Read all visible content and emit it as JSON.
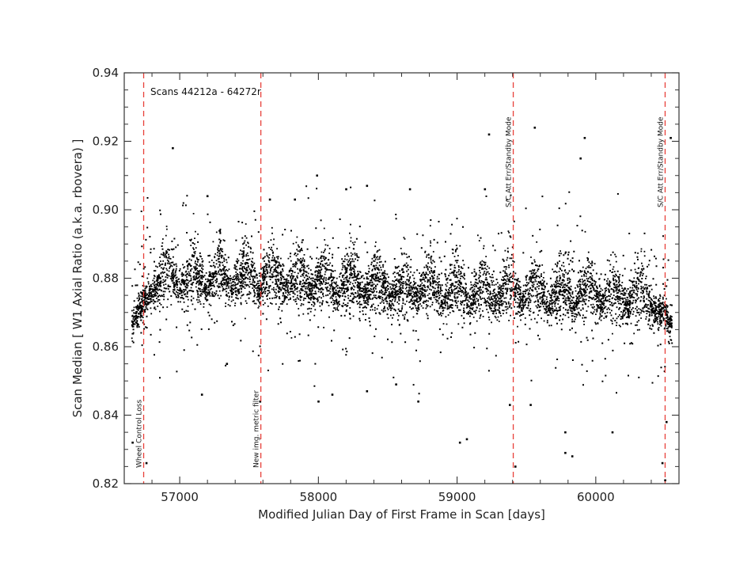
{
  "chart_data": {
    "type": "scatter",
    "title": "",
    "xlabel": "Modified Julian Day of First Frame in Scan [days]",
    "ylabel": "Scan Median [ W1 Axial Ratio (a.k.a. rbovera) ]",
    "xlim": [
      56600,
      60600
    ],
    "ylim": [
      0.82,
      0.94
    ],
    "x_ticks": [
      57000,
      58000,
      59000,
      60000
    ],
    "y_ticks": [
      0.82,
      0.84,
      0.86,
      0.88,
      0.9,
      0.92,
      0.94
    ],
    "x_tick_labels": [
      "57000",
      "58000",
      "59000",
      "60000"
    ],
    "y_tick_labels": [
      "0.82",
      "0.84",
      "0.86",
      "0.88",
      "0.90",
      "0.92",
      "0.94"
    ],
    "grid": false,
    "legend": "none",
    "point_color": "#000000",
    "vline_color": "#e8403a",
    "annotation": "Scans 44212a - 64272r",
    "vlines": [
      {
        "x": 56740,
        "label": "Wheel Control Loss"
      },
      {
        "x": 57585,
        "label": "New img. metric filter"
      },
      {
        "x": 59405,
        "label": "S/C Att Err/Standby Mode"
      },
      {
        "x": 60500,
        "label": "S/C Att Err/Standby Mode"
      }
    ],
    "series": [
      {
        "values_description_note": "",
        "trend_x": [
          56650,
          56700,
          56740,
          56800,
          56950,
          57100,
          57300,
          57500,
          57700,
          57900,
          58100,
          58300,
          58500,
          58700,
          58900,
          59100,
          59300,
          59500,
          59700,
          59900,
          60100,
          60300,
          60500,
          60540
        ],
        "trend_y": [
          0.87,
          0.874,
          0.877,
          0.879,
          0.88,
          0.88,
          0.88,
          0.88,
          0.88,
          0.879,
          0.878,
          0.878,
          0.877,
          0.877,
          0.876,
          0.876,
          0.876,
          0.876,
          0.875,
          0.875,
          0.875,
          0.874,
          0.873,
          0.87
        ],
        "oscillation_peaks_x": [
          56900,
          57090,
          57280,
          57470,
          57660,
          57850,
          58040,
          58230,
          58420,
          58610,
          58800,
          58990,
          59180,
          59370,
          59560,
          59750,
          59940,
          60130,
          60320
        ],
        "oscillation_amplitude": 0.009,
        "scatter_half_width": 0.0065,
        "outliers": [
          {
            "x": 56950,
            "y": 0.918
          },
          {
            "x": 57200,
            "y": 0.904
          },
          {
            "x": 57650,
            "y": 0.903
          },
          {
            "x": 57830,
            "y": 0.903
          },
          {
            "x": 57990,
            "y": 0.91
          },
          {
            "x": 58200,
            "y": 0.906
          },
          {
            "x": 58350,
            "y": 0.907
          },
          {
            "x": 58660,
            "y": 0.906
          },
          {
            "x": 59200,
            "y": 0.906
          },
          {
            "x": 59230,
            "y": 0.922
          },
          {
            "x": 59560,
            "y": 0.924
          },
          {
            "x": 59890,
            "y": 0.915
          },
          {
            "x": 59920,
            "y": 0.921
          },
          {
            "x": 60540,
            "y": 0.921
          },
          {
            "x": 56660,
            "y": 0.832
          },
          {
            "x": 56760,
            "y": 0.826
          },
          {
            "x": 57160,
            "y": 0.846
          },
          {
            "x": 57340,
            "y": 0.855
          },
          {
            "x": 57580,
            "y": 0.844
          },
          {
            "x": 58000,
            "y": 0.844
          },
          {
            "x": 58100,
            "y": 0.846
          },
          {
            "x": 58350,
            "y": 0.847
          },
          {
            "x": 58560,
            "y": 0.849
          },
          {
            "x": 58720,
            "y": 0.844
          },
          {
            "x": 59020,
            "y": 0.832
          },
          {
            "x": 59070,
            "y": 0.833
          },
          {
            "x": 59380,
            "y": 0.843
          },
          {
            "x": 59420,
            "y": 0.825
          },
          {
            "x": 59530,
            "y": 0.843
          },
          {
            "x": 59780,
            "y": 0.835
          },
          {
            "x": 59780,
            "y": 0.829
          },
          {
            "x": 59830,
            "y": 0.828
          },
          {
            "x": 60120,
            "y": 0.835
          },
          {
            "x": 60480,
            "y": 0.826
          },
          {
            "x": 60500,
            "y": 0.821
          },
          {
            "x": 60510,
            "y": 0.838
          }
        ]
      }
    ]
  }
}
